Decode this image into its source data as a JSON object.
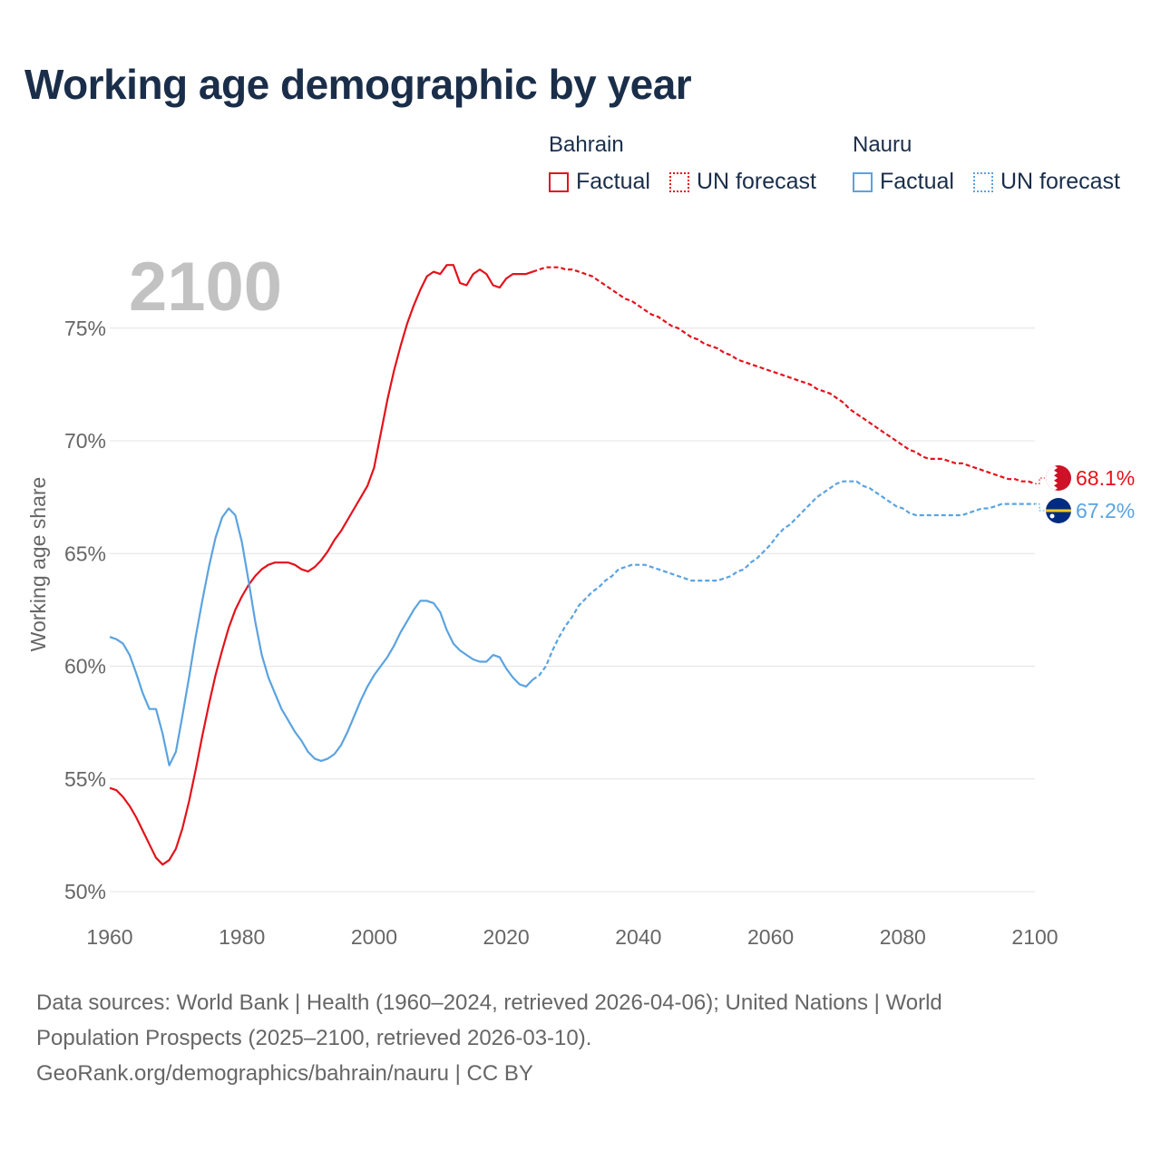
{
  "title": "Working age demographic by year",
  "legend": {
    "groups": [
      {
        "name": "Bahrain",
        "factual_label": "Factual",
        "forecast_label": "UN forecast",
        "color": "#e3121b"
      },
      {
        "name": "Nauru",
        "factual_label": "Factual",
        "forecast_label": "UN forecast",
        "color": "#5ba3e0"
      }
    ]
  },
  "year_label": "2100",
  "footer": {
    "line1": "Data sources: World Bank | Health (1960–2024, retrieved 2026-04-06); United Nations | World",
    "line2": "Population Prospects (2025–2100, retrieved 2026-03-10).",
    "line3": "GeoRank.org/demographics/bahrain/nauru | CC BY"
  },
  "chart_data": {
    "type": "line",
    "title": "Working age demographic by year",
    "xlabel": "",
    "ylabel": "Working age share",
    "xlim": [
      1960,
      2100
    ],
    "ylim": [
      50,
      77.5
    ],
    "x_ticks": [
      1960,
      1980,
      2000,
      2020,
      2040,
      2060,
      2080,
      2100
    ],
    "x_tick_labels": [
      "1960",
      "1980",
      "2000",
      "2020",
      "2040",
      "2060",
      "2080",
      "2100"
    ],
    "y_ticks": [
      50,
      55,
      60,
      65,
      70,
      75
    ],
    "y_tick_labels": [
      "50%",
      "55%",
      "60%",
      "65%",
      "70%",
      "75%"
    ],
    "grid": true,
    "forecast_start": 2024,
    "series": [
      {
        "name": "Bahrain",
        "color": "#e3121b",
        "end_label": "68.1%",
        "points": [
          [
            1960,
            54.6
          ],
          [
            1961,
            54.5
          ],
          [
            1962,
            54.2
          ],
          [
            1963,
            53.8
          ],
          [
            1964,
            53.3
          ],
          [
            1965,
            52.7
          ],
          [
            1966,
            52.1
          ],
          [
            1967,
            51.5
          ],
          [
            1968,
            51.2
          ],
          [
            1969,
            51.4
          ],
          [
            1970,
            51.9
          ],
          [
            1971,
            52.8
          ],
          [
            1972,
            54.0
          ],
          [
            1973,
            55.4
          ],
          [
            1974,
            56.9
          ],
          [
            1975,
            58.3
          ],
          [
            1976,
            59.6
          ],
          [
            1977,
            60.7
          ],
          [
            1978,
            61.7
          ],
          [
            1979,
            62.5
          ],
          [
            1980,
            63.1
          ],
          [
            1981,
            63.6
          ],
          [
            1982,
            64.0
          ],
          [
            1983,
            64.3
          ],
          [
            1984,
            64.5
          ],
          [
            1985,
            64.6
          ],
          [
            1986,
            64.6
          ],
          [
            1987,
            64.6
          ],
          [
            1988,
            64.5
          ],
          [
            1989,
            64.3
          ],
          [
            1990,
            64.2
          ],
          [
            1991,
            64.4
          ],
          [
            1992,
            64.7
          ],
          [
            1993,
            65.1
          ],
          [
            1994,
            65.6
          ],
          [
            1995,
            66.0
          ],
          [
            1996,
            66.5
          ],
          [
            1997,
            67.0
          ],
          [
            1998,
            67.5
          ],
          [
            1999,
            68.0
          ],
          [
            2000,
            68.8
          ],
          [
            2001,
            70.3
          ],
          [
            2002,
            71.8
          ],
          [
            2003,
            73.1
          ],
          [
            2004,
            74.2
          ],
          [
            2005,
            75.2
          ],
          [
            2006,
            76.0
          ],
          [
            2007,
            76.7
          ],
          [
            2008,
            77.3
          ],
          [
            2009,
            77.5
          ],
          [
            2010,
            77.4
          ],
          [
            2011,
            77.8
          ],
          [
            2012,
            77.8
          ],
          [
            2013,
            77.0
          ],
          [
            2014,
            76.9
          ],
          [
            2015,
            77.4
          ],
          [
            2016,
            77.6
          ],
          [
            2017,
            77.4
          ],
          [
            2018,
            76.9
          ],
          [
            2019,
            76.8
          ],
          [
            2020,
            77.2
          ],
          [
            2021,
            77.4
          ],
          [
            2022,
            77.4
          ],
          [
            2023,
            77.4
          ],
          [
            2024,
            77.5
          ],
          [
            2025,
            77.6
          ],
          [
            2026,
            77.7
          ],
          [
            2027,
            77.7
          ],
          [
            2028,
            77.7
          ],
          [
            2029,
            77.6
          ],
          [
            2030,
            77.6
          ],
          [
            2031,
            77.5
          ],
          [
            2032,
            77.4
          ],
          [
            2033,
            77.3
          ],
          [
            2034,
            77.1
          ],
          [
            2035,
            76.9
          ],
          [
            2036,
            76.7
          ],
          [
            2037,
            76.5
          ],
          [
            2038,
            76.3
          ],
          [
            2039,
            76.2
          ],
          [
            2040,
            76.0
          ],
          [
            2041,
            75.8
          ],
          [
            2042,
            75.6
          ],
          [
            2043,
            75.5
          ],
          [
            2044,
            75.3
          ],
          [
            2045,
            75.1
          ],
          [
            2046,
            75.0
          ],
          [
            2047,
            74.8
          ],
          [
            2048,
            74.6
          ],
          [
            2049,
            74.5
          ],
          [
            2050,
            74.3
          ],
          [
            2051,
            74.2
          ],
          [
            2052,
            74.1
          ],
          [
            2053,
            73.9
          ],
          [
            2054,
            73.8
          ],
          [
            2055,
            73.6
          ],
          [
            2056,
            73.5
          ],
          [
            2057,
            73.4
          ],
          [
            2058,
            73.3
          ],
          [
            2059,
            73.2
          ],
          [
            2060,
            73.1
          ],
          [
            2061,
            73.0
          ],
          [
            2062,
            72.9
          ],
          [
            2063,
            72.8
          ],
          [
            2064,
            72.7
          ],
          [
            2065,
            72.6
          ],
          [
            2066,
            72.5
          ],
          [
            2067,
            72.3
          ],
          [
            2068,
            72.2
          ],
          [
            2069,
            72.1
          ],
          [
            2070,
            71.9
          ],
          [
            2071,
            71.7
          ],
          [
            2072,
            71.4
          ],
          [
            2073,
            71.2
          ],
          [
            2074,
            71.0
          ],
          [
            2075,
            70.8
          ],
          [
            2076,
            70.6
          ],
          [
            2077,
            70.4
          ],
          [
            2078,
            70.2
          ],
          [
            2079,
            70.0
          ],
          [
            2080,
            69.8
          ],
          [
            2081,
            69.6
          ],
          [
            2082,
            69.5
          ],
          [
            2083,
            69.3
          ],
          [
            2084,
            69.2
          ],
          [
            2085,
            69.2
          ],
          [
            2086,
            69.2
          ],
          [
            2087,
            69.1
          ],
          [
            2088,
            69.0
          ],
          [
            2089,
            69.0
          ],
          [
            2090,
            68.9
          ],
          [
            2091,
            68.8
          ],
          [
            2092,
            68.7
          ],
          [
            2093,
            68.6
          ],
          [
            2094,
            68.5
          ],
          [
            2095,
            68.4
          ],
          [
            2096,
            68.3
          ],
          [
            2097,
            68.3
          ],
          [
            2098,
            68.2
          ],
          [
            2099,
            68.2
          ],
          [
            2100,
            68.1
          ]
        ]
      },
      {
        "name": "Nauru",
        "color": "#5ba3e0",
        "end_label": "67.2%",
        "points": [
          [
            1960,
            61.3
          ],
          [
            1961,
            61.2
          ],
          [
            1962,
            61.0
          ],
          [
            1963,
            60.5
          ],
          [
            1964,
            59.7
          ],
          [
            1965,
            58.8
          ],
          [
            1966,
            58.1
          ],
          [
            1967,
            58.1
          ],
          [
            1968,
            57.0
          ],
          [
            1969,
            55.6
          ],
          [
            1970,
            56.2
          ],
          [
            1971,
            57.8
          ],
          [
            1972,
            59.5
          ],
          [
            1973,
            61.3
          ],
          [
            1974,
            62.9
          ],
          [
            1975,
            64.4
          ],
          [
            1976,
            65.7
          ],
          [
            1977,
            66.6
          ],
          [
            1978,
            67.0
          ],
          [
            1979,
            66.7
          ],
          [
            1980,
            65.5
          ],
          [
            1981,
            63.8
          ],
          [
            1982,
            62.0
          ],
          [
            1983,
            60.5
          ],
          [
            1984,
            59.5
          ],
          [
            1985,
            58.8
          ],
          [
            1986,
            58.1
          ],
          [
            1987,
            57.6
          ],
          [
            1988,
            57.1
          ],
          [
            1989,
            56.7
          ],
          [
            1990,
            56.2
          ],
          [
            1991,
            55.9
          ],
          [
            1992,
            55.8
          ],
          [
            1993,
            55.9
          ],
          [
            1994,
            56.1
          ],
          [
            1995,
            56.5
          ],
          [
            1996,
            57.1
          ],
          [
            1997,
            57.8
          ],
          [
            1998,
            58.5
          ],
          [
            1999,
            59.1
          ],
          [
            2000,
            59.6
          ],
          [
            2001,
            60.0
          ],
          [
            2002,
            60.4
          ],
          [
            2003,
            60.9
          ],
          [
            2004,
            61.5
          ],
          [
            2005,
            62.0
          ],
          [
            2006,
            62.5
          ],
          [
            2007,
            62.9
          ],
          [
            2008,
            62.9
          ],
          [
            2009,
            62.8
          ],
          [
            2010,
            62.4
          ],
          [
            2011,
            61.6
          ],
          [
            2012,
            61.0
          ],
          [
            2013,
            60.7
          ],
          [
            2014,
            60.5
          ],
          [
            2015,
            60.3
          ],
          [
            2016,
            60.2
          ],
          [
            2017,
            60.2
          ],
          [
            2018,
            60.5
          ],
          [
            2019,
            60.4
          ],
          [
            2020,
            59.9
          ],
          [
            2021,
            59.5
          ],
          [
            2022,
            59.2
          ],
          [
            2023,
            59.1
          ],
          [
            2024,
            59.4
          ],
          [
            2025,
            59.6
          ],
          [
            2026,
            60.0
          ],
          [
            2027,
            60.7
          ],
          [
            2028,
            61.3
          ],
          [
            2029,
            61.8
          ],
          [
            2030,
            62.2
          ],
          [
            2031,
            62.7
          ],
          [
            2032,
            63.0
          ],
          [
            2033,
            63.3
          ],
          [
            2034,
            63.5
          ],
          [
            2035,
            63.8
          ],
          [
            2036,
            64.0
          ],
          [
            2037,
            64.3
          ],
          [
            2038,
            64.4
          ],
          [
            2039,
            64.5
          ],
          [
            2040,
            64.5
          ],
          [
            2041,
            64.5
          ],
          [
            2042,
            64.4
          ],
          [
            2043,
            64.3
          ],
          [
            2044,
            64.2
          ],
          [
            2045,
            64.1
          ],
          [
            2046,
            64.0
          ],
          [
            2047,
            63.9
          ],
          [
            2048,
            63.8
          ],
          [
            2049,
            63.8
          ],
          [
            2050,
            63.8
          ],
          [
            2051,
            63.8
          ],
          [
            2052,
            63.8
          ],
          [
            2053,
            63.9
          ],
          [
            2054,
            64.0
          ],
          [
            2055,
            64.2
          ],
          [
            2056,
            64.3
          ],
          [
            2057,
            64.6
          ],
          [
            2058,
            64.8
          ],
          [
            2059,
            65.1
          ],
          [
            2060,
            65.4
          ],
          [
            2061,
            65.8
          ],
          [
            2062,
            66.1
          ],
          [
            2063,
            66.3
          ],
          [
            2064,
            66.6
          ],
          [
            2065,
            66.9
          ],
          [
            2066,
            67.2
          ],
          [
            2067,
            67.5
          ],
          [
            2068,
            67.7
          ],
          [
            2069,
            67.9
          ],
          [
            2070,
            68.1
          ],
          [
            2071,
            68.2
          ],
          [
            2072,
            68.2
          ],
          [
            2073,
            68.2
          ],
          [
            2074,
            68.0
          ],
          [
            2075,
            67.9
          ],
          [
            2076,
            67.7
          ],
          [
            2077,
            67.5
          ],
          [
            2078,
            67.3
          ],
          [
            2079,
            67.1
          ],
          [
            2080,
            67.0
          ],
          [
            2081,
            66.8
          ],
          [
            2082,
            66.7
          ],
          [
            2083,
            66.7
          ],
          [
            2084,
            66.7
          ],
          [
            2085,
            66.7
          ],
          [
            2086,
            66.7
          ],
          [
            2087,
            66.7
          ],
          [
            2088,
            66.7
          ],
          [
            2089,
            66.7
          ],
          [
            2090,
            66.8
          ],
          [
            2091,
            66.9
          ],
          [
            2092,
            67.0
          ],
          [
            2093,
            67.0
          ],
          [
            2094,
            67.1
          ],
          [
            2095,
            67.2
          ],
          [
            2096,
            67.2
          ],
          [
            2097,
            67.2
          ],
          [
            2098,
            67.2
          ],
          [
            2099,
            67.2
          ],
          [
            2100,
            67.2
          ]
        ]
      }
    ]
  }
}
